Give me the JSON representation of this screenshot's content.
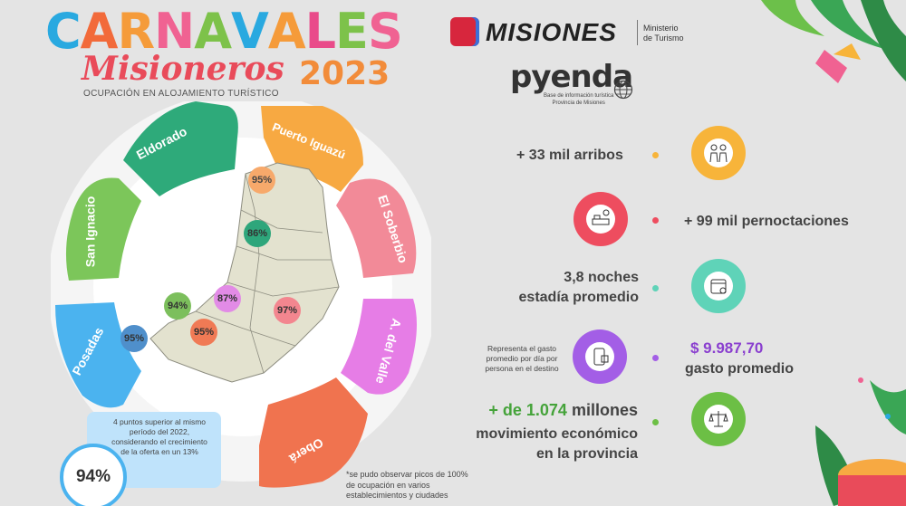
{
  "header": {
    "title_letters": [
      "C",
      "A",
      "R",
      "N",
      "A",
      "V",
      "A",
      "L",
      "E",
      "S"
    ],
    "title_colors": [
      "#29a9e0",
      "#f26a3a",
      "#f59b3a",
      "#f06292",
      "#7dc24a",
      "#29a9e0",
      "#f59b3a",
      "#e94b8a",
      "#7dc24a",
      "#f06292"
    ],
    "subtitle": "Misioneros",
    "year": "2023",
    "caption": "OCUPACIÓN EN ALOJAMIENTO TURÍSTICO"
  },
  "logos": {
    "misiones": "MISIONES",
    "ministerio": "Ministerio\nde Turismo",
    "pyenda": "pyenda",
    "pyenda_caption": "Base de información turística\nProvincia de Misiones"
  },
  "regions": [
    {
      "name": "Eldorado",
      "color": "#2eaa7a"
    },
    {
      "name": "Puerto Iguazú",
      "color": "#f7a942"
    },
    {
      "name": "El Soberbio",
      "color": "#f28a98"
    },
    {
      "name": "A. del Valle",
      "color": "#e67de6"
    },
    {
      "name": "Oberá",
      "color": "#f0734f"
    },
    {
      "name": "Posadas",
      "color": "#4bb3ef"
    },
    {
      "name": "San Ignacio",
      "color": "#7cc65a"
    }
  ],
  "map_badges": [
    {
      "value": "95%",
      "color": "#f7a96b"
    },
    {
      "value": "86%",
      "color": "#2ea67b"
    },
    {
      "value": "94%",
      "color": "#7cbf5c"
    },
    {
      "value": "87%",
      "color": "#e28be6"
    },
    {
      "value": "97%",
      "color": "#f3868f"
    },
    {
      "value": "95%",
      "color": "#f07a55"
    },
    {
      "value": "95%",
      "color": "#4f8fcb"
    }
  ],
  "summary": {
    "value": "94%",
    "text": "4 puntos superior al mismo período del 2022, considerando el crecimiento de la oferta en un 13%"
  },
  "footnote": "*se pudo observar picos de 100% de ocupación en varios establecimientos y ciudades",
  "stats": {
    "arrivals": {
      "text": "+ 33 mil arribos",
      "color": "#f7b43a"
    },
    "nights": {
      "text": "+ 99 mil pernoctaciones",
      "color": "#ee4d5f"
    },
    "stay": {
      "line1": "3,8 noches",
      "line2": "estadía promedio",
      "color": "#5fd3b8"
    },
    "spend": {
      "note": "Representa el gasto promedio por día por persona en el destino",
      "value": "$ 9.987,70",
      "label": "gasto promedio",
      "color": "#a35ee6"
    },
    "economy": {
      "value": "+ de 1.074",
      "value_suffix": "millones",
      "line2": "movimiento económico",
      "line3": "en la provincia",
      "color": "#6cbf45"
    }
  }
}
